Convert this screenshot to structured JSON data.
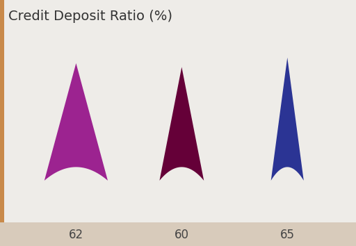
{
  "chart_data": {
    "type": "bar",
    "title": "Credit Deposit Ratio (%)",
    "categories": [
      null,
      null,
      null
    ],
    "values": [
      62,
      60,
      65
    ],
    "colors": [
      "#9c2390",
      "#650038",
      "#2b3494"
    ],
    "data_labels": true,
    "tick_labels": false
  }
}
